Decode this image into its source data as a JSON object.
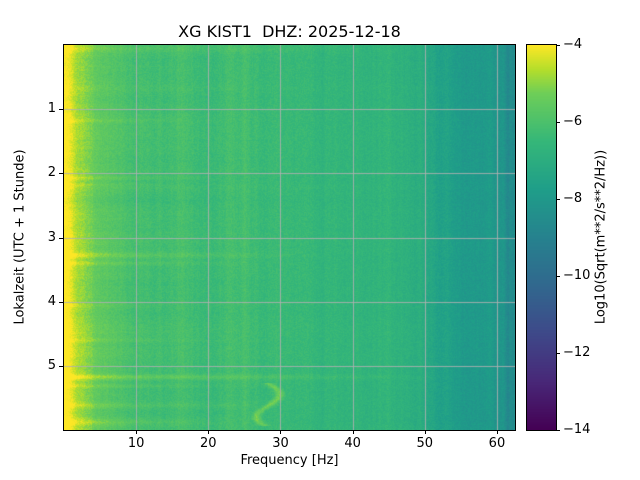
{
  "chart_data": {
    "type": "heatmap",
    "subtype": "spectrogram",
    "title": "XG KIST1  DHZ: 2025-12-18",
    "xlabel": "Frequency [Hz]",
    "ylabel": "Lokalzeit (UTC + 1 Stunde)",
    "x_range_hz": [
      0,
      62.5
    ],
    "y_range_hours": [
      0,
      6
    ],
    "xticks": [
      10,
      20,
      30,
      40,
      50,
      60
    ],
    "yticks": [
      1,
      2,
      3,
      4,
      5
    ],
    "grid": true,
    "grid_color": "#b0b0b0",
    "spine_color": "#000000",
    "background_color": "#ffffff",
    "colormap": "viridis",
    "colormap_stops": [
      {
        "pos": 0.0,
        "hex": "#440154"
      },
      {
        "pos": 0.125,
        "hex": "#482878"
      },
      {
        "pos": 0.25,
        "hex": "#3e4989"
      },
      {
        "pos": 0.375,
        "hex": "#31688e"
      },
      {
        "pos": 0.5,
        "hex": "#26828e"
      },
      {
        "pos": 0.625,
        "hex": "#1f9e89"
      },
      {
        "pos": 0.75,
        "hex": "#35b779"
      },
      {
        "pos": 0.875,
        "hex": "#6ece58"
      },
      {
        "pos": 0.9375,
        "hex": "#b5de2b"
      },
      {
        "pos": 1.0,
        "hex": "#fde725"
      }
    ],
    "colorbar": {
      "label": "Log10(Sqrt(m**2/s**2/Hz))",
      "ticks": [
        -4,
        -6,
        -8,
        -10,
        -12,
        -14
      ],
      "range": [
        -14,
        -4
      ],
      "top_value": -4,
      "bottom_value": -14
    },
    "freq_profile": [
      [
        0,
        -4.15
      ],
      [
        0.6,
        -4.25
      ],
      [
        1.5,
        -4.7
      ],
      [
        3,
        -5.3
      ],
      [
        5,
        -5.7
      ],
      [
        8,
        -6.0
      ],
      [
        12,
        -6.15
      ],
      [
        18,
        -6.25
      ],
      [
        25,
        -6.3
      ],
      [
        32,
        -6.35
      ],
      [
        38,
        -6.45
      ],
      [
        44,
        -6.65
      ],
      [
        48,
        -6.95
      ],
      [
        52,
        -7.4
      ],
      [
        56,
        -7.8
      ],
      [
        60,
        -8.1
      ],
      [
        62.5,
        -8.25
      ]
    ],
    "spectral_lines": [
      {
        "f": 16.5,
        "amp": 0.18,
        "width": 0.5
      },
      {
        "f": 25.2,
        "amp": 0.15,
        "width": 0.4
      },
      {
        "f": 33.6,
        "amp": 0.22,
        "width": 0.6
      },
      {
        "f": 47.5,
        "amp": 0.15,
        "width": 0.5
      },
      {
        "f": 61.6,
        "amp": -0.5,
        "width": 0.25
      },
      {
        "f": 62.3,
        "amp": -0.4,
        "width": 0.2
      }
    ],
    "bright_events": [
      {
        "t": 0.05,
        "amp": 0.45,
        "sigma": 0.04,
        "fmax": 50
      },
      {
        "t": 1.18,
        "amp": 0.3,
        "sigma": 0.03,
        "fmax": 22
      },
      {
        "t": 2.07,
        "amp": 0.55,
        "sigma": 0.025,
        "fmax": 24
      },
      {
        "t": 2.17,
        "amp": 0.3,
        "sigma": 0.02,
        "fmax": 18
      },
      {
        "t": 3.28,
        "amp": 0.75,
        "sigma": 0.03,
        "fmax": 38
      },
      {
        "t": 3.4,
        "amp": 0.5,
        "sigma": 0.025,
        "fmax": 30
      },
      {
        "t": 4.07,
        "amp": 0.25,
        "sigma": 0.02,
        "fmax": 18
      },
      {
        "t": 4.6,
        "amp": 0.3,
        "sigma": 0.025,
        "fmax": 22
      },
      {
        "t": 5.18,
        "amp": 0.85,
        "sigma": 0.03,
        "fmax": 55
      },
      {
        "t": 5.32,
        "amp": 0.4,
        "sigma": 0.02,
        "fmax": 30
      },
      {
        "t": 5.62,
        "amp": 0.5,
        "sigma": 0.03,
        "fmax": 35
      },
      {
        "t": 5.88,
        "amp": 0.7,
        "sigma": 0.04,
        "fmax": 30
      }
    ],
    "wiggle_event": {
      "t_start": 5.28,
      "t_end": 5.95,
      "f_center": 28.3,
      "f_swing": 1.6,
      "rate": 9,
      "f_sigma": 0.45,
      "amp": 1.1
    },
    "low_freq_boost": {
      "base": 0.18,
      "growth": 0.25,
      "falloff_hz": 4
    }
  }
}
